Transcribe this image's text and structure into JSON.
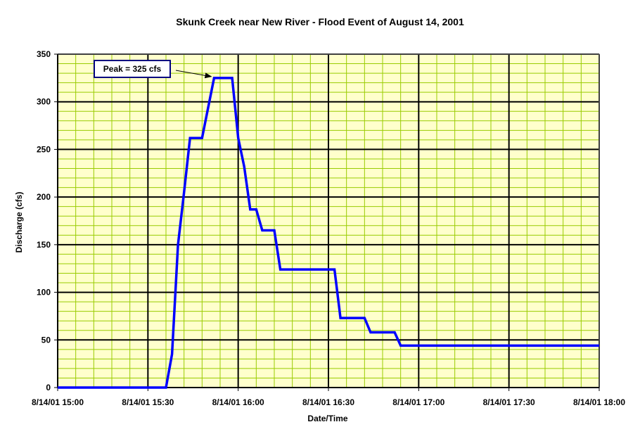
{
  "chart_data": {
    "type": "line",
    "title": "Skunk Creek near New River - Flood Event of August 14, 2001",
    "xlabel": "Date/Time",
    "ylabel": "Discharge (cfs)",
    "xlim": [
      "8/14/01 15:00",
      "8/14/01 18:00"
    ],
    "ylim": [
      0,
      350
    ],
    "x_ticks": [
      "8/14/01 15:00",
      "8/14/01 15:30",
      "8/14/01 16:00",
      "8/14/01 16:30",
      "8/14/01 17:00",
      "8/14/01 17:30",
      "8/14/01 18:00"
    ],
    "y_ticks": [
      "0",
      "50",
      "100",
      "150",
      "200",
      "250",
      "300",
      "350"
    ],
    "minor_x_step_minutes": 6,
    "minor_y_step": 10,
    "grid": true,
    "legend": false,
    "plot_background": "#ffffcc",
    "major_grid_color": "#000000",
    "minor_grid_color": "#99cc00",
    "line_color": "#0000ff",
    "series": [
      {
        "x": [
          "8/14/01 15:00",
          "8/14/01 15:30",
          "8/14/01 15:36",
          "8/14/01 15:38",
          "8/14/01 15:40",
          "8/14/01 15:42",
          "8/14/01 15:44",
          "8/14/01 15:48",
          "8/14/01 15:52",
          "8/14/01 15:58",
          "8/14/01 16:00",
          "8/14/01 16:02",
          "8/14/01 16:04",
          "8/14/01 16:06",
          "8/14/01 16:08",
          "8/14/01 16:12",
          "8/14/01 16:14",
          "8/14/01 16:32",
          "8/14/01 16:34",
          "8/14/01 16:42",
          "8/14/01 16:44",
          "8/14/01 16:52",
          "8/14/01 16:54",
          "8/14/01 18:00"
        ],
        "y": [
          0,
          0,
          0,
          35,
          150,
          205,
          262,
          262,
          325,
          325,
          262,
          232,
          187,
          187,
          165,
          165,
          124,
          124,
          73,
          73,
          58,
          58,
          44,
          44
        ]
      }
    ],
    "annotations": [
      {
        "text": "Peak = 325 cfs",
        "x": "8/14/01 15:52",
        "y": 325
      }
    ]
  }
}
